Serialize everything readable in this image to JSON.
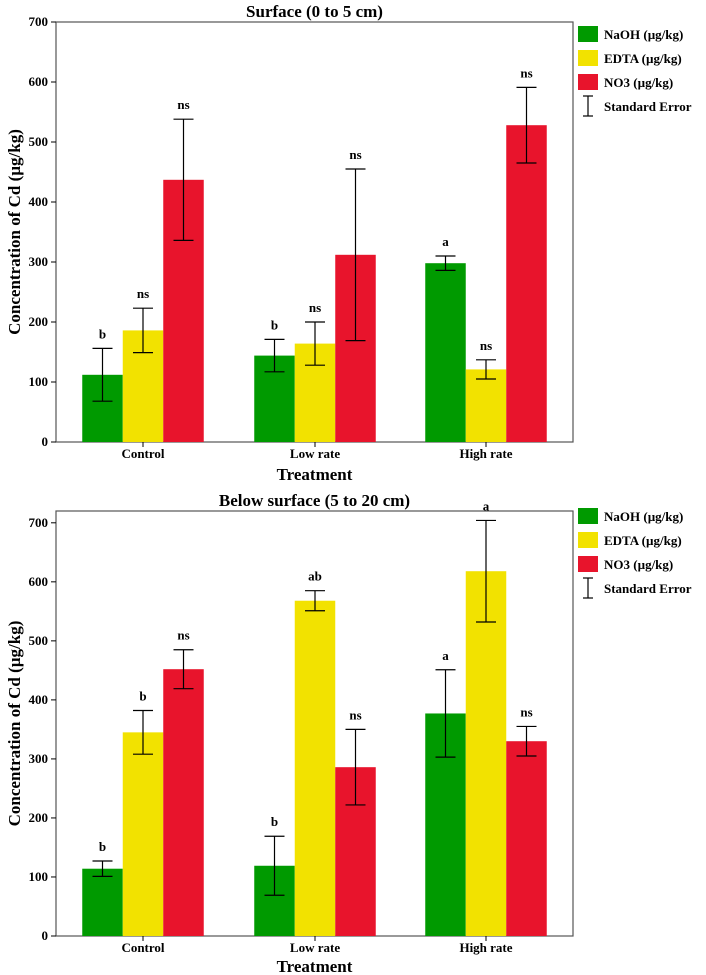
{
  "chart_data": [
    {
      "type": "bar",
      "title": "Surface (0 to 5 cm)",
      "xlabel": "Treatment",
      "ylabel": "Concentration of Cd (µg/kg)",
      "ylim": [
        0,
        700
      ],
      "yticks": [
        0,
        100,
        200,
        300,
        400,
        500,
        600,
        700
      ],
      "categories": [
        "Control",
        "Low rate",
        "High rate"
      ],
      "series": [
        {
          "name": "NaOH (µg/kg)",
          "color": "#009a00",
          "values": [
            112,
            144,
            298
          ],
          "errors": [
            44,
            27,
            12
          ],
          "labels": [
            "b",
            "b",
            "a"
          ]
        },
        {
          "name": "EDTA (µg/kg)",
          "color": "#f2e200",
          "values": [
            186,
            164,
            121
          ],
          "errors": [
            37,
            36,
            16
          ],
          "labels": [
            "ns",
            "ns",
            "ns"
          ]
        },
        {
          "name": "NO3 (µg/kg)",
          "color": "#e8142c",
          "values": [
            437,
            312,
            528
          ],
          "errors": [
            101,
            143,
            63
          ],
          "labels": [
            "ns",
            "ns",
            "ns"
          ]
        }
      ],
      "legend_extra": "Standard Error"
    },
    {
      "type": "bar",
      "title": "Below surface (5 to 20 cm)",
      "xlabel": "Treatment",
      "ylabel": "Concentration of Cd (µg/kg)",
      "ylim": [
        0,
        720
      ],
      "yticks": [
        0,
        100,
        200,
        300,
        400,
        500,
        600,
        700
      ],
      "categories": [
        "Control",
        "Low rate",
        "High rate"
      ],
      "series": [
        {
          "name": "NaOH (µg/kg)",
          "color": "#009a00",
          "values": [
            114,
            119,
            377
          ],
          "errors": [
            13,
            50,
            74
          ],
          "labels": [
            "b",
            "b",
            "a"
          ]
        },
        {
          "name": "EDTA (µg/kg)",
          "color": "#f2e200",
          "values": [
            345,
            568,
            618
          ],
          "errors": [
            37,
            17,
            86
          ],
          "labels": [
            "b",
            "ab",
            "a"
          ]
        },
        {
          "name": "NO3 (µg/kg)",
          "color": "#e8142c",
          "values": [
            452,
            286,
            330
          ],
          "errors": [
            33,
            64,
            25
          ],
          "labels": [
            "ns",
            "ns",
            "ns"
          ]
        }
      ],
      "legend_extra": "Standard Error"
    }
  ]
}
